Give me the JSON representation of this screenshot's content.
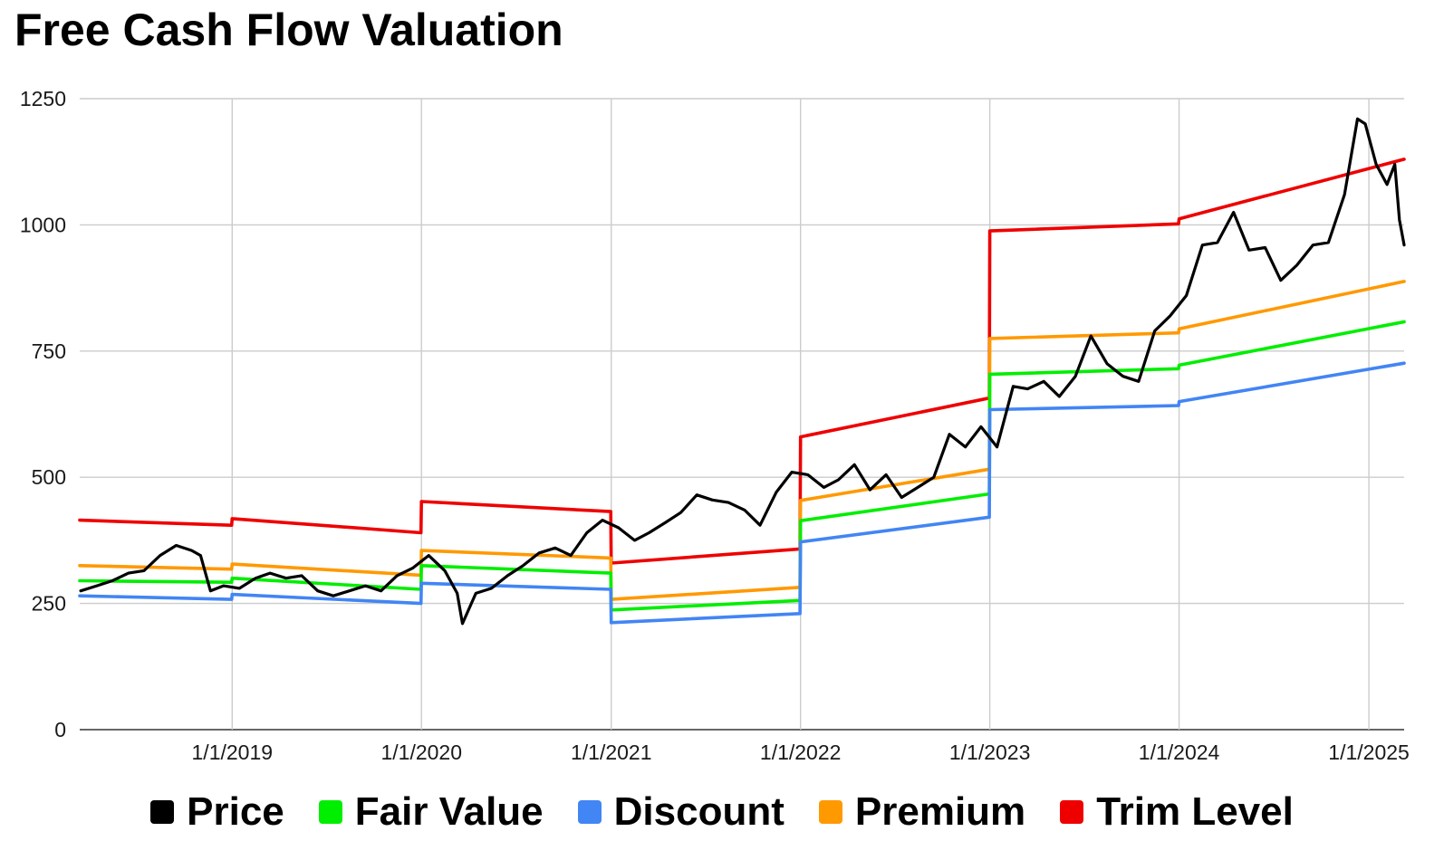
{
  "chart_data": {
    "type": "line",
    "title": "Free Cash Flow Valuation",
    "xlabel": "",
    "ylabel": "",
    "ylim": [
      0,
      1250
    ],
    "yticks": [
      "0",
      "250",
      "500",
      "750",
      "1000",
      "1250"
    ],
    "xticks": [
      "1/1/2019",
      "1/1/2020",
      "1/1/2021",
      "1/1/2022",
      "1/1/2023",
      "1/1/2024",
      "1/1/2025"
    ],
    "xlim": [
      "2018-03-13",
      "2025-03-10"
    ],
    "grid": true,
    "legend_position": "bottom",
    "series": [
      {
        "name": "Price",
        "color": "#000000",
        "points": [
          [
            "2018-03-15",
            275
          ],
          [
            "2018-04-15",
            285
          ],
          [
            "2018-05-15",
            295
          ],
          [
            "2018-06-15",
            310
          ],
          [
            "2018-07-15",
            315
          ],
          [
            "2018-08-15",
            345
          ],
          [
            "2018-09-15",
            365
          ],
          [
            "2018-10-15",
            355
          ],
          [
            "2018-11-01",
            345
          ],
          [
            "2018-11-20",
            275
          ],
          [
            "2018-12-15",
            285
          ],
          [
            "2019-01-15",
            280
          ],
          [
            "2019-02-15",
            300
          ],
          [
            "2019-03-15",
            310
          ],
          [
            "2019-04-15",
            300
          ],
          [
            "2019-05-15",
            305
          ],
          [
            "2019-06-15",
            275
          ],
          [
            "2019-07-15",
            265
          ],
          [
            "2019-08-15",
            275
          ],
          [
            "2019-09-15",
            285
          ],
          [
            "2019-10-15",
            275
          ],
          [
            "2019-11-15",
            305
          ],
          [
            "2019-12-15",
            320
          ],
          [
            "2020-01-15",
            345
          ],
          [
            "2020-02-15",
            315
          ],
          [
            "2020-03-10",
            270
          ],
          [
            "2020-03-20",
            210
          ],
          [
            "2020-04-15",
            270
          ],
          [
            "2020-05-15",
            280
          ],
          [
            "2020-06-15",
            305
          ],
          [
            "2020-07-15",
            325
          ],
          [
            "2020-08-15",
            350
          ],
          [
            "2020-09-15",
            360
          ],
          [
            "2020-10-15",
            345
          ],
          [
            "2020-11-15",
            390
          ],
          [
            "2020-12-15",
            415
          ],
          [
            "2021-01-15",
            400
          ],
          [
            "2021-02-15",
            375
          ],
          [
            "2021-03-15",
            390
          ],
          [
            "2021-04-15",
            410
          ],
          [
            "2021-05-15",
            430
          ],
          [
            "2021-06-15",
            465
          ],
          [
            "2021-07-15",
            455
          ],
          [
            "2021-08-15",
            450
          ],
          [
            "2021-09-15",
            435
          ],
          [
            "2021-10-15",
            405
          ],
          [
            "2021-11-15",
            470
          ],
          [
            "2021-12-15",
            510
          ],
          [
            "2022-01-15",
            505
          ],
          [
            "2022-02-15",
            480
          ],
          [
            "2022-03-15",
            495
          ],
          [
            "2022-04-15",
            525
          ],
          [
            "2022-05-15",
            475
          ],
          [
            "2022-06-15",
            505
          ],
          [
            "2022-07-15",
            460
          ],
          [
            "2022-08-15",
            480
          ],
          [
            "2022-09-15",
            500
          ],
          [
            "2022-10-15",
            585
          ],
          [
            "2022-11-15",
            560
          ],
          [
            "2022-12-15",
            600
          ],
          [
            "2023-01-15",
            560
          ],
          [
            "2023-02-15",
            680
          ],
          [
            "2023-03-15",
            675
          ],
          [
            "2023-04-15",
            690
          ],
          [
            "2023-05-15",
            660
          ],
          [
            "2023-06-15",
            700
          ],
          [
            "2023-07-15",
            780
          ],
          [
            "2023-08-15",
            725
          ],
          [
            "2023-09-15",
            700
          ],
          [
            "2023-10-15",
            690
          ],
          [
            "2023-11-15",
            790
          ],
          [
            "2023-12-15",
            820
          ],
          [
            "2024-01-15",
            860
          ],
          [
            "2024-02-15",
            960
          ],
          [
            "2024-03-15",
            965
          ],
          [
            "2024-04-15",
            1025
          ],
          [
            "2024-05-15",
            950
          ],
          [
            "2024-06-15",
            955
          ],
          [
            "2024-07-15",
            890
          ],
          [
            "2024-08-15",
            920
          ],
          [
            "2024-09-15",
            960
          ],
          [
            "2024-10-15",
            965
          ],
          [
            "2024-11-15",
            1060
          ],
          [
            "2024-12-10",
            1210
          ],
          [
            "2024-12-25",
            1200
          ],
          [
            "2025-01-15",
            1120
          ],
          [
            "2025-02-05",
            1080
          ],
          [
            "2025-02-20",
            1120
          ],
          [
            "2025-03-01",
            1010
          ],
          [
            "2025-03-10",
            960
          ]
        ]
      },
      {
        "name": "Fair Value",
        "color": "#00ee00",
        "points": [
          [
            "2018-03-13",
            295
          ],
          [
            "2018-12-31",
            292
          ],
          [
            "2019-01-01",
            300
          ],
          [
            "2019-12-31",
            278
          ],
          [
            "2020-01-01",
            325
          ],
          [
            "2020-12-31",
            310
          ],
          [
            "2021-01-01",
            237
          ],
          [
            "2021-12-31",
            256
          ],
          [
            "2022-01-01",
            414
          ],
          [
            "2022-12-31",
            467
          ],
          [
            "2023-01-01",
            704
          ],
          [
            "2023-12-31",
            715
          ],
          [
            "2024-01-01",
            722
          ],
          [
            "2025-03-10",
            808
          ]
        ]
      },
      {
        "name": "Discount",
        "color": "#4285f4",
        "points": [
          [
            "2018-03-13",
            265
          ],
          [
            "2018-12-31",
            258
          ],
          [
            "2019-01-01",
            268
          ],
          [
            "2019-12-31",
            250
          ],
          [
            "2020-01-01",
            290
          ],
          [
            "2020-12-31",
            278
          ],
          [
            "2021-01-01",
            212
          ],
          [
            "2021-12-31",
            230
          ],
          [
            "2022-01-01",
            372
          ],
          [
            "2022-12-31",
            421
          ],
          [
            "2023-01-01",
            634
          ],
          [
            "2023-12-31",
            642
          ],
          [
            "2024-01-01",
            650
          ],
          [
            "2025-03-10",
            726
          ]
        ]
      },
      {
        "name": "Premium",
        "color": "#ff9900",
        "points": [
          [
            "2018-03-13",
            325
          ],
          [
            "2018-12-31",
            318
          ],
          [
            "2019-01-01",
            328
          ],
          [
            "2019-12-31",
            306
          ],
          [
            "2020-01-01",
            355
          ],
          [
            "2020-12-31",
            340
          ],
          [
            "2021-01-01",
            258
          ],
          [
            "2021-12-31",
            282
          ],
          [
            "2022-01-01",
            454
          ],
          [
            "2022-12-31",
            516
          ],
          [
            "2023-01-01",
            775
          ],
          [
            "2023-12-31",
            786
          ],
          [
            "2024-01-01",
            794
          ],
          [
            "2025-03-10",
            888
          ]
        ]
      },
      {
        "name": "Trim Level",
        "color": "#ee0000",
        "points": [
          [
            "2018-03-13",
            415
          ],
          [
            "2018-12-31",
            405
          ],
          [
            "2019-01-01",
            418
          ],
          [
            "2019-12-31",
            390
          ],
          [
            "2020-01-01",
            452
          ],
          [
            "2020-12-31",
            432
          ],
          [
            "2021-01-01",
            330
          ],
          [
            "2021-12-31",
            358
          ],
          [
            "2022-01-01",
            580
          ],
          [
            "2022-12-31",
            657
          ],
          [
            "2023-01-01",
            988
          ],
          [
            "2023-12-31",
            1002
          ],
          [
            "2024-01-01",
            1012
          ],
          [
            "2025-03-10",
            1130
          ]
        ]
      }
    ]
  }
}
